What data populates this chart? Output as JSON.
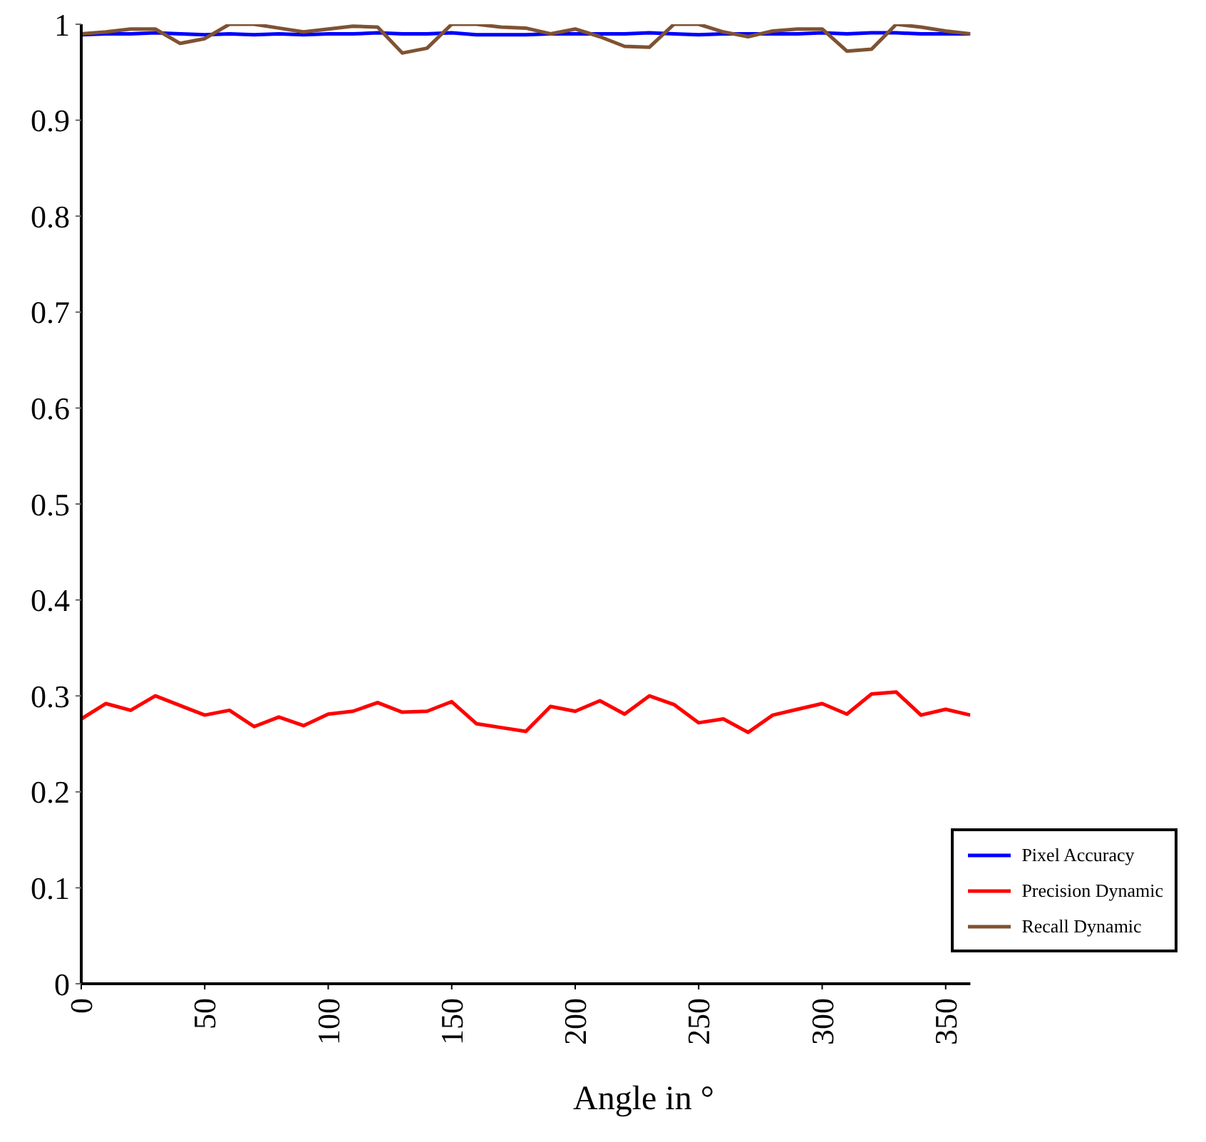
{
  "chart_data": {
    "type": "line",
    "xlabel": "Angle in °",
    "x": [
      0,
      10,
      20,
      30,
      40,
      50,
      60,
      70,
      80,
      90,
      100,
      110,
      120,
      130,
      140,
      150,
      160,
      170,
      180,
      190,
      200,
      210,
      220,
      230,
      240,
      250,
      260,
      270,
      280,
      290,
      300,
      310,
      320,
      330,
      340,
      350,
      360
    ],
    "series": [
      {
        "name": "Pixel Accuracy",
        "color": "#0000ff",
        "values": [
          0.989,
          0.99,
          0.99,
          0.991,
          0.99,
          0.989,
          0.99,
          0.989,
          0.99,
          0.989,
          0.99,
          0.99,
          0.991,
          0.99,
          0.99,
          0.991,
          0.989,
          0.989,
          0.989,
          0.99,
          0.99,
          0.99,
          0.99,
          0.991,
          0.99,
          0.989,
          0.99,
          0.99,
          0.99,
          0.99,
          0.991,
          0.99,
          0.991,
          0.991,
          0.99,
          0.99,
          0.99
        ]
      },
      {
        "name": "Precision Dynamic",
        "color": "#ff0000",
        "values": [
          0.276,
          0.292,
          0.285,
          0.3,
          0.29,
          0.28,
          0.285,
          0.268,
          0.278,
          0.269,
          0.281,
          0.284,
          0.293,
          0.283,
          0.284,
          0.294,
          0.271,
          0.267,
          0.263,
          0.289,
          0.284,
          0.295,
          0.281,
          0.3,
          0.291,
          0.272,
          0.276,
          0.262,
          0.28,
          0.286,
          0.292,
          0.281,
          0.302,
          0.304,
          0.28,
          0.286,
          0.28
        ]
      },
      {
        "name": "Recall Dynamic",
        "color": "#7f5233",
        "values": [
          0.99,
          0.992,
          0.995,
          0.995,
          0.98,
          0.985,
          1.0,
          1.0,
          0.996,
          0.992,
          0.995,
          0.998,
          0.997,
          0.97,
          0.975,
          1.0,
          1.0,
          0.997,
          0.996,
          0.99,
          0.995,
          0.987,
          0.977,
          0.976,
          1.0,
          1.0,
          0.992,
          0.987,
          0.993,
          0.995,
          0.995,
          0.972,
          0.974,
          1.0,
          0.997,
          0.993,
          0.99
        ]
      }
    ],
    "xlim": [
      0,
      360
    ],
    "xticks": [
      0,
      50,
      100,
      150,
      200,
      250,
      300,
      350
    ],
    "ylim": [
      0,
      1
    ],
    "yticks": [
      0,
      0.1,
      0.2,
      0.3,
      0.4,
      0.5,
      0.6,
      0.7,
      0.8,
      0.9,
      1
    ],
    "grid": false,
    "legend": "bottom right",
    "marker": "none",
    "line_style": "solid"
  }
}
